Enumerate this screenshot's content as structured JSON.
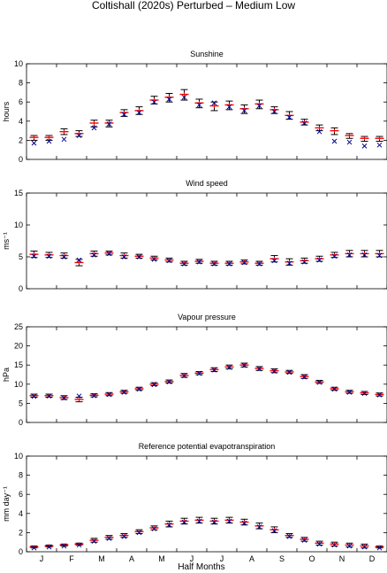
{
  "title": "Coltishall (2020s) Perturbed – Medium Low",
  "xlabel": "Half Months",
  "month_labels": [
    "J",
    "F",
    "M",
    "A",
    "M",
    "J",
    "J",
    "A",
    "S",
    "O",
    "N",
    "D"
  ],
  "colors": {
    "mean_marker": "#ff0000",
    "observed_marker": "#00008b",
    "error_bar": "#000000",
    "axes": "#000000"
  },
  "chart_data": [
    {
      "type": "scatter",
      "title": "Sunshine",
      "ylabel": "hours",
      "ylim": [
        0,
        10
      ],
      "yticks": [
        0,
        2,
        4,
        6,
        8,
        10
      ],
      "x": [
        1,
        2,
        3,
        4,
        5,
        6,
        7,
        8,
        9,
        10,
        11,
        12,
        13,
        14,
        15,
        16,
        17,
        18,
        19,
        20,
        21,
        22,
        23,
        24
      ],
      "series": [
        {
          "marker": "plus",
          "color": "#ff0000",
          "values": [
            2.3,
            2.3,
            2.9,
            2.7,
            3.8,
            3.8,
            4.9,
            5.1,
            6.2,
            6.5,
            6.8,
            5.9,
            5.6,
            5.7,
            5.3,
            5.8,
            5.2,
            4.6,
            3.9,
            3.3,
            3.0,
            2.5,
            2.2,
            2.2
          ],
          "err_low": [
            2.0,
            2.0,
            2.6,
            2.4,
            3.4,
            3.4,
            4.5,
            4.7,
            5.8,
            6.0,
            6.2,
            5.4,
            5.1,
            5.2,
            4.8,
            5.3,
            4.8,
            4.2,
            3.6,
            3.0,
            2.6,
            2.2,
            1.9,
            1.9
          ],
          "err_high": [
            2.5,
            2.5,
            3.2,
            3.0,
            4.1,
            4.1,
            5.2,
            5.5,
            6.6,
            6.9,
            7.3,
            6.3,
            6.0,
            6.1,
            5.7,
            6.2,
            5.5,
            5.0,
            4.2,
            3.6,
            3.3,
            2.7,
            2.4,
            2.4
          ]
        },
        {
          "marker": "x",
          "color": "#00008b",
          "values": [
            1.7,
            1.9,
            2.1,
            2.5,
            3.3,
            3.7,
            4.7,
            4.9,
            6.0,
            6.3,
            6.5,
            5.7,
            5.9,
            5.5,
            5.1,
            5.6,
            5.0,
            4.4,
            3.8,
            2.9,
            1.9,
            1.8,
            1.4,
            1.5
          ]
        }
      ]
    },
    {
      "type": "scatter",
      "title": "Wind speed",
      "ylabel": "ms⁻¹",
      "ylim": [
        0,
        15
      ],
      "yticks": [
        0,
        5,
        10,
        15
      ],
      "x": [
        1,
        2,
        3,
        4,
        5,
        6,
        7,
        8,
        9,
        10,
        11,
        12,
        13,
        14,
        15,
        16,
        17,
        18,
        19,
        20,
        21,
        22,
        23,
        24
      ],
      "series": [
        {
          "marker": "plus",
          "color": "#ff0000",
          "values": [
            5.4,
            5.3,
            5.2,
            4.1,
            5.5,
            5.6,
            5.2,
            5.1,
            4.8,
            4.5,
            4.0,
            4.3,
            4.0,
            4.0,
            4.2,
            4.0,
            4.7,
            4.2,
            4.4,
            4.7,
            5.3,
            5.5,
            5.5,
            5.5
          ],
          "err_low": [
            4.9,
            4.9,
            4.8,
            3.6,
            5.1,
            5.3,
            4.8,
            4.8,
            4.5,
            4.2,
            3.7,
            4.0,
            3.7,
            3.7,
            3.9,
            3.7,
            4.2,
            3.7,
            4.0,
            4.3,
            4.9,
            5.0,
            5.0,
            5.0
          ],
          "err_high": [
            5.9,
            5.7,
            5.6,
            4.6,
            5.9,
            5.9,
            5.6,
            5.4,
            5.1,
            4.8,
            4.3,
            4.6,
            4.3,
            4.3,
            4.5,
            4.3,
            5.2,
            4.7,
            4.8,
            5.1,
            5.7,
            6.0,
            6.0,
            6.0
          ]
        },
        {
          "marker": "x",
          "color": "#00008b",
          "values": [
            5.1,
            5.1,
            5.0,
            4.5,
            5.3,
            5.5,
            5.0,
            5.0,
            4.6,
            4.4,
            3.9,
            4.2,
            3.9,
            3.9,
            4.1,
            3.9,
            4.4,
            4.0,
            4.2,
            4.5,
            5.1,
            5.3,
            5.3,
            5.2
          ]
        }
      ]
    },
    {
      "type": "scatter",
      "title": "Vapour pressure",
      "ylabel": "hPa",
      "ylim": [
        0,
        25
      ],
      "yticks": [
        0,
        5,
        10,
        15,
        20,
        25
      ],
      "x": [
        1,
        2,
        3,
        4,
        5,
        6,
        7,
        8,
        9,
        10,
        11,
        12,
        13,
        14,
        15,
        16,
        17,
        18,
        19,
        20,
        21,
        22,
        23,
        24
      ],
      "series": [
        {
          "marker": "plus",
          "color": "#ff0000",
          "values": [
            7.0,
            7.0,
            6.5,
            6.0,
            7.1,
            7.4,
            8.0,
            8.8,
            10.0,
            10.7,
            12.3,
            12.9,
            13.8,
            14.5,
            15.0,
            14.1,
            13.5,
            13.2,
            12.0,
            10.6,
            8.8,
            8.0,
            7.7,
            7.3
          ],
          "err_low": [
            6.6,
            6.6,
            6.0,
            5.4,
            6.7,
            7.0,
            7.6,
            8.4,
            9.6,
            10.3,
            11.8,
            12.5,
            13.3,
            14.0,
            14.5,
            13.6,
            13.0,
            12.8,
            11.5,
            10.2,
            8.4,
            7.6,
            7.3,
            6.9
          ],
          "err_high": [
            7.4,
            7.4,
            7.0,
            6.6,
            7.5,
            7.8,
            8.4,
            9.2,
            10.4,
            11.1,
            12.8,
            13.3,
            14.3,
            15.0,
            15.5,
            14.6,
            14.0,
            13.6,
            12.5,
            11.0,
            9.2,
            8.4,
            8.1,
            7.7
          ]
        },
        {
          "marker": "x",
          "color": "#00008b",
          "values": [
            6.8,
            6.9,
            6.4,
            6.9,
            7.0,
            7.3,
            7.9,
            8.7,
            9.9,
            10.6,
            12.2,
            12.8,
            13.7,
            14.4,
            14.9,
            14.0,
            13.4,
            13.1,
            11.9,
            10.5,
            8.7,
            7.9,
            7.6,
            7.2
          ]
        }
      ]
    },
    {
      "type": "scatter",
      "title": "Reference potential evapotranspiration",
      "ylabel": "mm day⁻¹",
      "ylim": [
        0,
        10
      ],
      "yticks": [
        0,
        2,
        4,
        6,
        8,
        10
      ],
      "x": [
        1,
        2,
        3,
        4,
        5,
        6,
        7,
        8,
        9,
        10,
        11,
        12,
        13,
        14,
        15,
        16,
        17,
        18,
        19,
        20,
        21,
        22,
        23,
        24
      ],
      "series": [
        {
          "marker": "plus",
          "color": "#ff0000",
          "values": [
            0.5,
            0.6,
            0.7,
            0.8,
            1.2,
            1.5,
            1.7,
            2.1,
            2.5,
            2.9,
            3.2,
            3.3,
            3.2,
            3.3,
            3.1,
            2.7,
            2.3,
            1.7,
            1.3,
            0.9,
            0.8,
            0.7,
            0.6,
            0.5
          ],
          "err_low": [
            0.4,
            0.5,
            0.6,
            0.7,
            1.0,
            1.3,
            1.5,
            1.9,
            2.3,
            2.6,
            2.9,
            3.0,
            2.9,
            3.0,
            2.8,
            2.4,
            2.0,
            1.5,
            1.1,
            0.7,
            0.6,
            0.5,
            0.4,
            0.4
          ],
          "err_high": [
            0.6,
            0.7,
            0.8,
            0.9,
            1.4,
            1.7,
            1.9,
            2.3,
            2.7,
            3.2,
            3.5,
            3.6,
            3.5,
            3.6,
            3.4,
            3.0,
            2.6,
            1.9,
            1.5,
            1.1,
            1.0,
            0.9,
            0.8,
            0.6
          ]
        },
        {
          "marker": "x",
          "color": "#00008b",
          "values": [
            0.4,
            0.5,
            0.6,
            0.7,
            1.1,
            1.4,
            1.6,
            2.0,
            2.4,
            2.8,
            3.1,
            3.2,
            3.1,
            3.2,
            3.0,
            2.6,
            2.2,
            1.6,
            1.2,
            0.8,
            0.7,
            0.6,
            0.5,
            0.4
          ]
        }
      ]
    }
  ]
}
